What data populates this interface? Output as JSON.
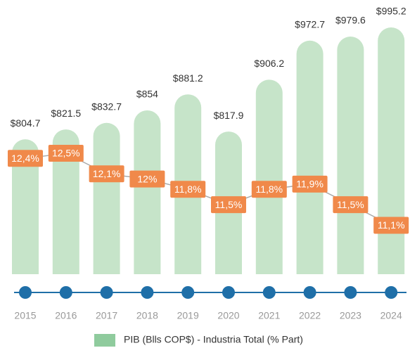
{
  "chart_data": {
    "type": "bar-line",
    "categories": [
      "2015",
      "2016",
      "2017",
      "2018",
      "2019",
      "2020",
      "2021",
      "2022",
      "2023",
      "2024"
    ],
    "ylim": [
      575,
      1000
    ],
    "y2lim": [
      10.15,
      15
    ],
    "series": [
      {
        "name": "PIB (Blls COP$) - Industria Total (% Part)",
        "color": "#c6e4c9",
        "legend_color": "#8fcb9d",
        "values": [
          804.7,
          821.5,
          832.7,
          854,
          881.2,
          817.9,
          906.2,
          972.7,
          979.6,
          995.2
        ],
        "value_labels": [
          "$804.7",
          "$821.5",
          "$832.7",
          "$854",
          "$881.2",
          "$817.9",
          "$906.2",
          "$972.7",
          "$979.6",
          "$995.2"
        ]
      },
      {
        "axis": "y2",
        "color": "#f0894a",
        "line_color": "#aaaaaa",
        "values": [
          12.4,
          12.5,
          12.1,
          12,
          11.8,
          11.5,
          11.8,
          11.9,
          11.5,
          11.1
        ],
        "value_labels": [
          "12,4%",
          "12,5%",
          "12,1%",
          "12%",
          "11,8%",
          "11,5%",
          "11,8%",
          "11,9%",
          "11,5%",
          "11,1%"
        ]
      }
    ]
  }
}
